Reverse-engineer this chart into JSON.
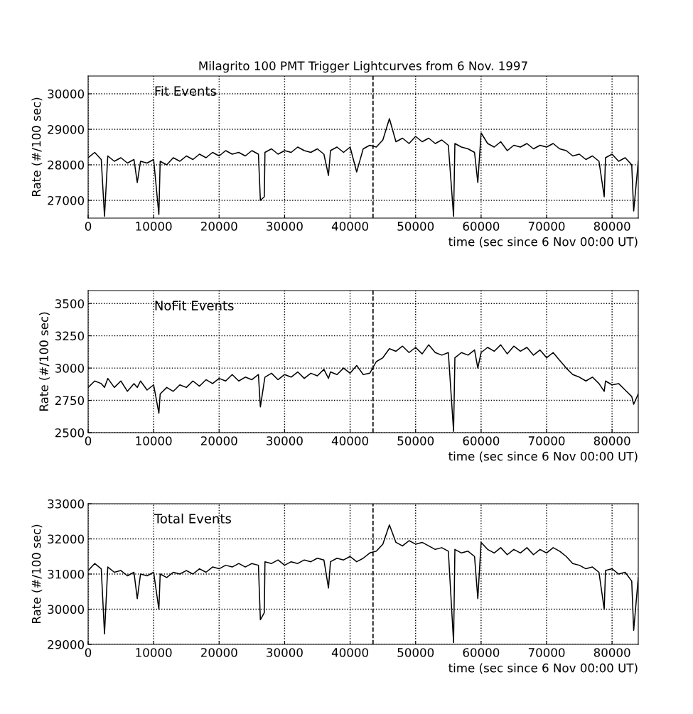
{
  "chart_data": [
    {
      "type": "line",
      "title": "Milagrito 100 PMT Trigger Lightcurves from 6 Nov. 1997",
      "xlabel": "time (sec since 6 Nov 00:00 UT)",
      "ylabel": "Rate (#/100 sec)",
      "annotations": [
        "Fit Events"
      ],
      "x": [
        0,
        1000,
        2000,
        2500,
        3000,
        4000,
        5000,
        6000,
        7000,
        7500,
        8000,
        9000,
        10000,
        10800,
        11000,
        12000,
        13000,
        14000,
        15000,
        16000,
        17000,
        18000,
        19000,
        20000,
        21000,
        22000,
        23000,
        24000,
        25000,
        26000,
        26300,
        26900,
        27000,
        28000,
        29000,
        30000,
        31000,
        32000,
        33000,
        34000,
        35000,
        36000,
        36700,
        37000,
        38000,
        39000,
        40000,
        41000,
        42000,
        43000,
        44000,
        45000,
        46000,
        47000,
        48000,
        49000,
        50000,
        51000,
        52000,
        53000,
        54000,
        55000,
        55800,
        56000,
        57000,
        58000,
        59000,
        59500,
        60000,
        61000,
        62000,
        63000,
        64000,
        65000,
        66000,
        67000,
        68000,
        69000,
        70000,
        71000,
        72000,
        73000,
        74000,
        75000,
        76000,
        77000,
        78000,
        78800,
        79000,
        80000,
        81000,
        82000,
        83000,
        83300,
        84000
      ],
      "series": [
        {
          "color": "#000000",
          "values": [
            28200,
            28350,
            28150,
            26550,
            28250,
            28100,
            28200,
            28050,
            28150,
            27500,
            28100,
            28050,
            28150,
            26600,
            28100,
            28000,
            28200,
            28100,
            28250,
            28150,
            28300,
            28200,
            28350,
            28250,
            28400,
            28300,
            28350,
            28250,
            28400,
            28300,
            27000,
            27100,
            28350,
            28450,
            28300,
            28400,
            28350,
            28500,
            28400,
            28350,
            28450,
            28300,
            27700,
            28400,
            28500,
            28350,
            28500,
            27800,
            28450,
            28550,
            28500,
            28700,
            29300,
            28650,
            28750,
            28600,
            28800,
            28650,
            28750,
            28600,
            28700,
            28550,
            26550,
            28600,
            28500,
            28450,
            28350,
            27500,
            28900,
            28600,
            28500,
            28650,
            28400,
            28550,
            28500,
            28600,
            28450,
            28550,
            28500,
            28600,
            28450,
            28400,
            28250,
            28300,
            28150,
            28250,
            28100,
            27100,
            28200,
            28300,
            28100,
            28200,
            28000,
            26700,
            28100
          ]
        }
      ],
      "xlim": [
        0,
        84000
      ],
      "xticks": [
        0,
        10000,
        20000,
        30000,
        40000,
        50000,
        60000,
        70000,
        80000
      ],
      "ylim": [
        26500,
        30500
      ],
      "yticks": [
        27000,
        28000,
        29000,
        30000
      ],
      "ref_lines": [
        {
          "axis": "x",
          "value": 43500,
          "color": "#000000",
          "line_style": "dashed"
        }
      ],
      "grid": true,
      "line_style": "solid",
      "marker": "none"
    },
    {
      "type": "line",
      "xlabel": "time (sec since 6 Nov 00:00 UT)",
      "ylabel": "Rate (#/100 sec)",
      "annotations": [
        "NoFit Events"
      ],
      "x": [
        0,
        1000,
        2000,
        2500,
        3000,
        4000,
        5000,
        6000,
        7000,
        7500,
        8000,
        9000,
        10000,
        10800,
        11000,
        12000,
        13000,
        14000,
        15000,
        16000,
        17000,
        18000,
        19000,
        20000,
        21000,
        22000,
        23000,
        24000,
        25000,
        26000,
        26300,
        26900,
        27000,
        28000,
        29000,
        30000,
        31000,
        32000,
        33000,
        34000,
        35000,
        36000,
        36700,
        37000,
        38000,
        39000,
        40000,
        41000,
        42000,
        43000,
        44000,
        45000,
        46000,
        47000,
        48000,
        49000,
        50000,
        51000,
        52000,
        53000,
        54000,
        55000,
        55800,
        56000,
        57000,
        58000,
        59000,
        59500,
        60000,
        61000,
        62000,
        63000,
        64000,
        65000,
        66000,
        67000,
        68000,
        69000,
        70000,
        71000,
        72000,
        73000,
        74000,
        75000,
        76000,
        77000,
        78000,
        78800,
        79000,
        80000,
        81000,
        82000,
        83000,
        83300,
        84000
      ],
      "series": [
        {
          "color": "#000000",
          "values": [
            2850,
            2900,
            2880,
            2850,
            2920,
            2850,
            2900,
            2820,
            2880,
            2850,
            2900,
            2830,
            2870,
            2650,
            2800,
            2850,
            2820,
            2870,
            2850,
            2900,
            2860,
            2910,
            2880,
            2920,
            2900,
            2950,
            2900,
            2930,
            2910,
            2950,
            2700,
            2900,
            2930,
            2960,
            2910,
            2950,
            2930,
            2970,
            2920,
            2960,
            2940,
            2990,
            2920,
            2970,
            2950,
            3000,
            2960,
            3020,
            2950,
            2960,
            3050,
            3080,
            3150,
            3130,
            3170,
            3120,
            3160,
            3110,
            3180,
            3120,
            3100,
            3120,
            2510,
            3080,
            3120,
            3100,
            3140,
            3000,
            3120,
            3160,
            3130,
            3180,
            3110,
            3170,
            3130,
            3160,
            3100,
            3140,
            3080,
            3120,
            3060,
            3000,
            2950,
            2930,
            2900,
            2930,
            2880,
            2820,
            2900,
            2870,
            2880,
            2830,
            2780,
            2720,
            2800
          ]
        }
      ],
      "xlim": [
        0,
        84000
      ],
      "xticks": [
        0,
        10000,
        20000,
        30000,
        40000,
        50000,
        60000,
        70000,
        80000
      ],
      "ylim": [
        2500,
        3600
      ],
      "yticks": [
        2500,
        2750,
        3000,
        3250,
        3500
      ],
      "ref_lines": [
        {
          "axis": "x",
          "value": 43500,
          "color": "#000000",
          "line_style": "dashed"
        }
      ],
      "grid": true,
      "line_style": "solid",
      "marker": "none"
    },
    {
      "type": "line",
      "xlabel": "time (sec since 6 Nov 00:00 UT)",
      "ylabel": "Rate (#/100 sec)",
      "annotations": [
        "Total Events"
      ],
      "x": [
        0,
        1000,
        2000,
        2500,
        3000,
        4000,
        5000,
        6000,
        7000,
        7500,
        8000,
        9000,
        10000,
        10800,
        11000,
        12000,
        13000,
        14000,
        15000,
        16000,
        17000,
        18000,
        19000,
        20000,
        21000,
        22000,
        23000,
        24000,
        25000,
        26000,
        26300,
        26900,
        27000,
        28000,
        29000,
        30000,
        31000,
        32000,
        33000,
        34000,
        35000,
        36000,
        36700,
        37000,
        38000,
        39000,
        40000,
        41000,
        42000,
        43000,
        44000,
        45000,
        46000,
        47000,
        48000,
        49000,
        50000,
        51000,
        52000,
        53000,
        54000,
        55000,
        55800,
        56000,
        57000,
        58000,
        59000,
        59500,
        60000,
        61000,
        62000,
        63000,
        64000,
        65000,
        66000,
        67000,
        68000,
        69000,
        70000,
        71000,
        72000,
        73000,
        74000,
        75000,
        76000,
        77000,
        78000,
        78800,
        79000,
        80000,
        81000,
        82000,
        83000,
        83300,
        84000
      ],
      "series": [
        {
          "color": "#000000",
          "values": [
            31100,
            31300,
            31150,
            29300,
            31200,
            31050,
            31100,
            30950,
            31050,
            30300,
            31000,
            30950,
            31050,
            30000,
            31000,
            30900,
            31050,
            31000,
            31100,
            31000,
            31150,
            31050,
            31200,
            31150,
            31250,
            31200,
            31300,
            31200,
            31300,
            31250,
            29700,
            29900,
            31350,
            31300,
            31400,
            31250,
            31350,
            31300,
            31400,
            31350,
            31450,
            31400,
            30600,
            31350,
            31450,
            31400,
            31500,
            31350,
            31450,
            31600,
            31650,
            31850,
            32400,
            31900,
            31800,
            31950,
            31850,
            31900,
            31800,
            31700,
            31750,
            31650,
            29050,
            31700,
            31600,
            31650,
            31500,
            30300,
            31900,
            31700,
            31600,
            31750,
            31550,
            31700,
            31600,
            31750,
            31550,
            31700,
            31600,
            31750,
            31650,
            31500,
            31300,
            31250,
            31150,
            31200,
            31050,
            30000,
            31100,
            31150,
            31000,
            31050,
            30800,
            29400,
            30900
          ]
        }
      ],
      "xlim": [
        0,
        84000
      ],
      "xticks": [
        0,
        10000,
        20000,
        30000,
        40000,
        50000,
        60000,
        70000,
        80000
      ],
      "ylim": [
        29000,
        33000
      ],
      "yticks": [
        29000,
        30000,
        31000,
        32000,
        33000
      ],
      "ref_lines": [
        {
          "axis": "x",
          "value": 43500,
          "color": "#000000",
          "line_style": "dashed"
        }
      ],
      "grid": true,
      "line_style": "solid",
      "marker": "none"
    }
  ]
}
